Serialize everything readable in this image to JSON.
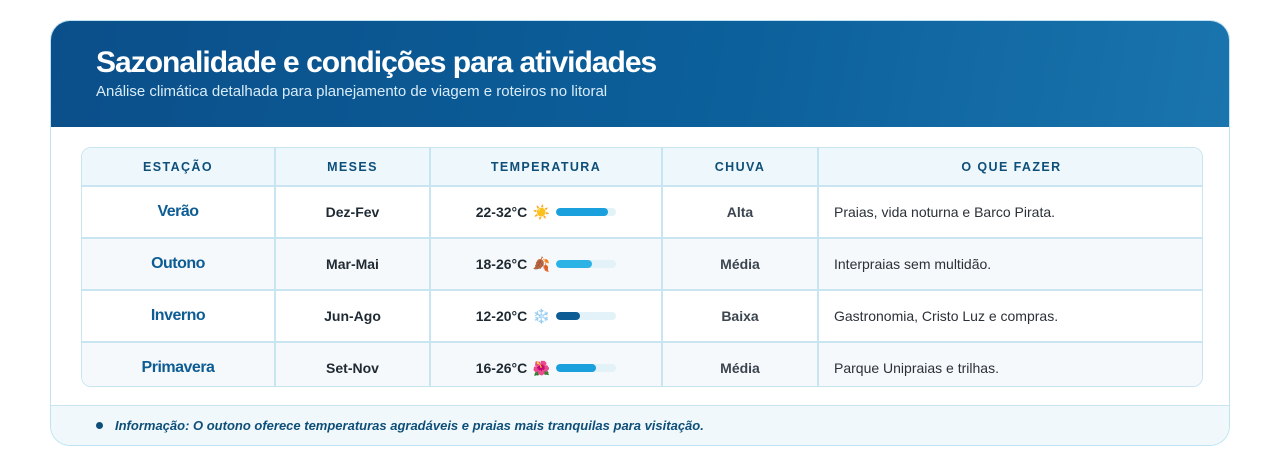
{
  "header": {
    "title": "Sazonalidade e condições para atividades",
    "subtitle": "Análise climática detalhada para planejamento de viagem e roteiros no litoral"
  },
  "table": {
    "columns": [
      "ESTAÇÃO",
      "MESES",
      "TEMPERATURA",
      "CHUVA",
      "O QUE FAZER"
    ],
    "rows": [
      {
        "season": "Verão",
        "months": "Dez-Fev",
        "temp": "22-32°C",
        "icon": "☀️",
        "icon_name": "sun-icon",
        "level": 0.87,
        "bar_color": "#1aa0dc",
        "rain": "Alta",
        "activity": "Praias, vida noturna e Barco Pirata."
      },
      {
        "season": "Outono",
        "months": "Mar-Mai",
        "temp": "18-26°C",
        "icon": "🍂",
        "icon_name": "fallen-leaf-icon",
        "level": 0.6,
        "bar_color": "#2cb3e6",
        "rain": "Média",
        "activity": "Interpraias sem multidão."
      },
      {
        "season": "Inverno",
        "months": "Jun-Ago",
        "temp": "12-20°C",
        "icon": "❄️",
        "icon_name": "snowflake-icon",
        "level": 0.4,
        "bar_color": "#0d5d94",
        "rain": "Baixa",
        "activity": "Gastronomia, Cristo Luz e compras."
      },
      {
        "season": "Primavera",
        "months": "Set-Nov",
        "temp": "16-26°C",
        "icon": "🌺",
        "icon_name": "hibiscus-icon",
        "level": 0.66,
        "bar_color": "#1aa0dc",
        "rain": "Média",
        "activity": "Parque Unipraias e trilhas."
      }
    ]
  },
  "footer": {
    "note": "Informação: O outono oferece temperaturas agradáveis e praias mais tranquilas para visitação."
  }
}
